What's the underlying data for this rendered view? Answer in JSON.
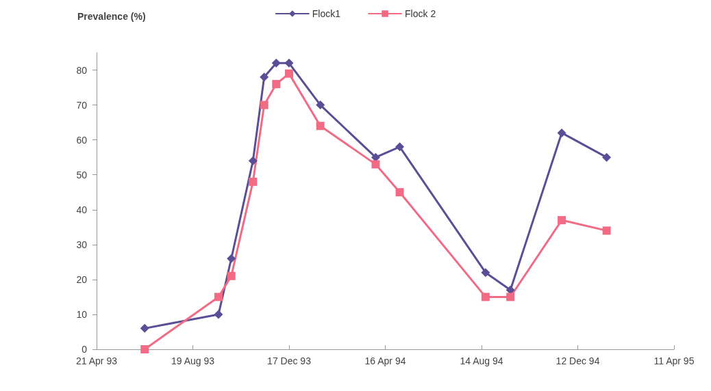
{
  "chart_data": {
    "type": "line",
    "ylabel": "Prevalence (%)",
    "legend": "top",
    "grid": false,
    "line_style": "solid",
    "xlim": [
      "1993-04-21",
      "1995-04-11"
    ],
    "xticks": [
      {
        "value": "1993-04-21",
        "label": "21 Apr 93"
      },
      {
        "value": "1993-08-19",
        "label": "19 Aug 93"
      },
      {
        "value": "1993-12-17",
        "label": "17 Dec 93"
      },
      {
        "value": "1994-04-16",
        "label": "16 Apr 94"
      },
      {
        "value": "1994-08-14",
        "label": "14 Aug 94"
      },
      {
        "value": "1994-12-12",
        "label": "12 Dec 94"
      },
      {
        "value": "1995-04-11",
        "label": "11 Apr 95"
      }
    ],
    "ylim": [
      0,
      85
    ],
    "yticks": [
      0,
      10,
      20,
      30,
      40,
      50,
      60,
      70,
      80
    ],
    "x": [
      "1993-06-20",
      "1993-09-20",
      "1993-10-06",
      "1993-11-02",
      "1993-11-16",
      "1993-12-01",
      "1993-12-17",
      "1994-01-25",
      "1994-04-04",
      "1994-05-04",
      "1994-08-19",
      "1994-09-19",
      "1994-11-22",
      "1995-01-17"
    ],
    "series": [
      {
        "name": "Flock1",
        "color": "#5a4f96",
        "marker": "diamond",
        "values": [
          6,
          10,
          26,
          54,
          78,
          82,
          82,
          70,
          55,
          58,
          22,
          17,
          62,
          55
        ]
      },
      {
        "name": "Flock 2",
        "color": "#f26b84",
        "marker": "square",
        "values": [
          0,
          15,
          21,
          48,
          70,
          76,
          79,
          64,
          53,
          45,
          15,
          15,
          37,
          34
        ]
      }
    ]
  }
}
